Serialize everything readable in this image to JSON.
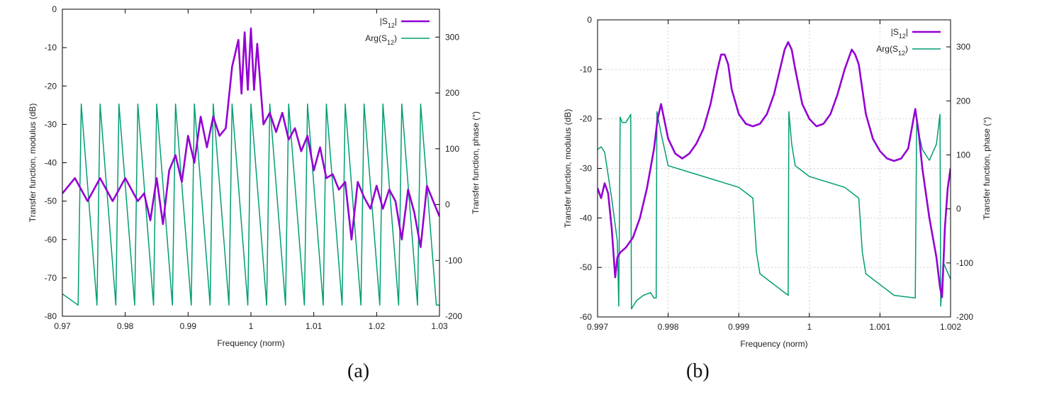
{
  "chart_data": [
    {
      "type": "line",
      "panel": "(a)",
      "xlabel": "Frequency (norm)",
      "ylabel": "Transfer function, modulus (dB)",
      "y2label": "Transfer function, phase (°)",
      "xlim": [
        0.97,
        1.03
      ],
      "ylim": [
        -80,
        0
      ],
      "y2lim": [
        -200,
        350
      ],
      "xticks": [
        "0.97",
        "0.98",
        "0.99",
        "1",
        "1.01",
        "1.02",
        "1.03"
      ],
      "yticks": [
        "0",
        "-10",
        "-20",
        "-30",
        "-40",
        "-50",
        "-60",
        "-70",
        "-80"
      ],
      "y2ticks": [
        "300",
        "200",
        "100",
        "0",
        "-100",
        "-200"
      ],
      "grid": false,
      "legend_position": "top-right",
      "series": [
        {
          "name": "|S12|",
          "color": "#9400D3",
          "axis": "left",
          "x": [
            0.97,
            0.972,
            0.974,
            0.976,
            0.978,
            0.98,
            0.982,
            0.983,
            0.984,
            0.985,
            0.986,
            0.987,
            0.988,
            0.989,
            0.99,
            0.991,
            0.992,
            0.993,
            0.994,
            0.995,
            0.996,
            0.997,
            0.998,
            0.9985,
            0.999,
            0.9995,
            1.0,
            1.0005,
            1.001,
            1.002,
            1.003,
            1.004,
            1.005,
            1.006,
            1.007,
            1.008,
            1.009,
            1.01,
            1.011,
            1.012,
            1.013,
            1.014,
            1.015,
            1.016,
            1.017,
            1.018,
            1.019,
            1.02,
            1.021,
            1.022,
            1.023,
            1.024,
            1.025,
            1.026,
            1.027,
            1.028,
            1.029,
            1.03
          ],
          "y": [
            -48,
            -44,
            -50,
            -44,
            -50,
            -44,
            -50,
            -48,
            -55,
            -44,
            -56,
            -42,
            -38,
            -45,
            -33,
            -40,
            -28,
            -36,
            -28,
            -33,
            -31,
            -15,
            -8,
            -22,
            -6,
            -21,
            -5,
            -21,
            -9,
            -30,
            -27,
            -32,
            -27,
            -34,
            -31,
            -37,
            -33,
            -42,
            -36,
            -44,
            -43,
            -47,
            -45,
            -60,
            -45,
            -49,
            -52,
            -46,
            -52,
            -47,
            -50,
            -60,
            -47,
            -53,
            -62,
            -46,
            -50,
            -54
          ]
        },
        {
          "name": "Arg(S12)",
          "color": "#009E73",
          "axis": "right",
          "x": [
            0.97,
            0.9725,
            0.973,
            0.9755,
            0.976,
            0.9785,
            0.979,
            0.9815,
            0.982,
            0.9845,
            0.985,
            0.9875,
            0.988,
            0.9905,
            0.991,
            0.9935,
            0.994,
            0.9965,
            0.997,
            0.9995,
            1.0,
            1.0025,
            1.003,
            1.0055,
            1.006,
            1.0085,
            1.009,
            1.0115,
            1.012,
            1.0145,
            1.015,
            1.0175,
            1.018,
            1.0205,
            1.021,
            1.0235,
            1.024,
            1.0265,
            1.027,
            1.0295,
            1.03
          ],
          "y": [
            -160,
            -180,
            180,
            -180,
            180,
            -180,
            180,
            -180,
            180,
            -180,
            180,
            -180,
            180,
            -180,
            180,
            -180,
            180,
            -180,
            180,
            -180,
            180,
            -180,
            180,
            -180,
            180,
            -180,
            180,
            -180,
            180,
            -180,
            180,
            -180,
            180,
            -180,
            180,
            -180,
            180,
            -180,
            180,
            -180,
            -180
          ]
        }
      ]
    },
    {
      "type": "line",
      "panel": "(b)",
      "xlabel": "Frequency (norm)",
      "ylabel": "Transfer function, modulus (dB)",
      "y2label": "Transfer function, phase (°)",
      "xlim": [
        0.997,
        1.002
      ],
      "ylim": [
        -60,
        0
      ],
      "y2lim": [
        -200,
        350
      ],
      "xticks": [
        "0.997",
        "0.998",
        "0.999",
        "1",
        "1.001",
        "1.002"
      ],
      "yticks": [
        "0",
        "-10",
        "-20",
        "-30",
        "-40",
        "-50",
        "-60"
      ],
      "y2ticks": [
        "300",
        "200",
        "100",
        "0",
        "-100",
        "-200"
      ],
      "grid": true,
      "legend_position": "top-right",
      "series": [
        {
          "name": "|S12|",
          "color": "#9400D3",
          "axis": "left",
          "x": [
            0.997,
            0.99705,
            0.9971,
            0.99715,
            0.9972,
            0.99725,
            0.99728,
            0.99732,
            0.9974,
            0.9975,
            0.9976,
            0.9977,
            0.9978,
            0.99785,
            0.9979,
            0.998,
            0.9981,
            0.9982,
            0.9983,
            0.9984,
            0.9985,
            0.9986,
            0.9987,
            0.99875,
            0.9988,
            0.99885,
            0.9989,
            0.999,
            0.9991,
            0.9992,
            0.9993,
            0.9994,
            0.9995,
            0.9996,
            0.99965,
            0.9997,
            0.99975,
            0.9998,
            0.9999,
            1.0,
            1.0001,
            1.0002,
            1.0003,
            1.0004,
            1.0005,
            1.0006,
            1.00065,
            1.0007,
            1.00075,
            1.0008,
            1.0009,
            1.001,
            1.0011,
            1.0012,
            1.0013,
            1.0014,
            1.00145,
            1.0015,
            1.00155,
            1.0016,
            1.0017,
            1.0018,
            1.00185,
            1.00188,
            1.00192,
            1.00196,
            1.002
          ],
          "y": [
            -34,
            -36,
            -33,
            -35,
            -42,
            -52,
            -48,
            -47,
            -46,
            -44,
            -40,
            -34,
            -26,
            -20,
            -17,
            -24,
            -27,
            -28,
            -27,
            -25,
            -22,
            -17,
            -10,
            -7,
            -7,
            -9,
            -14,
            -19,
            -21,
            -21.5,
            -21,
            -19,
            -15,
            -9,
            -6,
            -4.5,
            -6,
            -10,
            -17,
            -20,
            -21.5,
            -21,
            -19,
            -15,
            -10,
            -6,
            -7,
            -9,
            -14,
            -19,
            -24,
            -26.5,
            -28,
            -28.5,
            -28,
            -26,
            -22,
            -18,
            -23,
            -30,
            -40,
            -48,
            -54,
            -56,
            -42,
            -34,
            -30
          ]
        },
        {
          "name": "Arg(S12)",
          "color": "#009E73",
          "axis": "right",
          "x": [
            0.997,
            0.99705,
            0.9971,
            0.9972,
            0.99728,
            0.9973,
            0.99732,
            0.99735,
            0.9974,
            0.99745,
            0.99747,
            0.99748,
            0.99755,
            0.99765,
            0.99775,
            0.9978,
            0.99783,
            0.99784,
            0.9979,
            0.998,
            0.9985,
            0.999,
            0.9992,
            0.99925,
            0.9993,
            0.9995,
            0.9997,
            0.99971,
            0.99975,
            0.9998,
            1.0,
            1.0005,
            1.0007,
            1.00075,
            1.0008,
            1.001,
            1.0012,
            1.0015,
            1.00152,
            1.00155,
            1.0016,
            1.0017,
            1.0018,
            1.00185,
            1.00186,
            1.0019,
            1.002
          ],
          "y": [
            110,
            115,
            105,
            20,
            -60,
            -180,
            170,
            160,
            160,
            170,
            175,
            -185,
            -170,
            -160,
            -155,
            -165,
            -165,
            180,
            140,
            80,
            60,
            40,
            20,
            -80,
            -120,
            -140,
            -160,
            180,
            120,
            80,
            60,
            40,
            20,
            -80,
            -120,
            -140,
            -160,
            -165,
            165,
            140,
            110,
            90,
            120,
            175,
            -180,
            -100,
            -130
          ]
        }
      ]
    }
  ],
  "captions": {
    "a": "(a)",
    "b": "(b)"
  },
  "legend_labels": {
    "mag": "|S12|",
    "phase": "Arg(S12)"
  }
}
